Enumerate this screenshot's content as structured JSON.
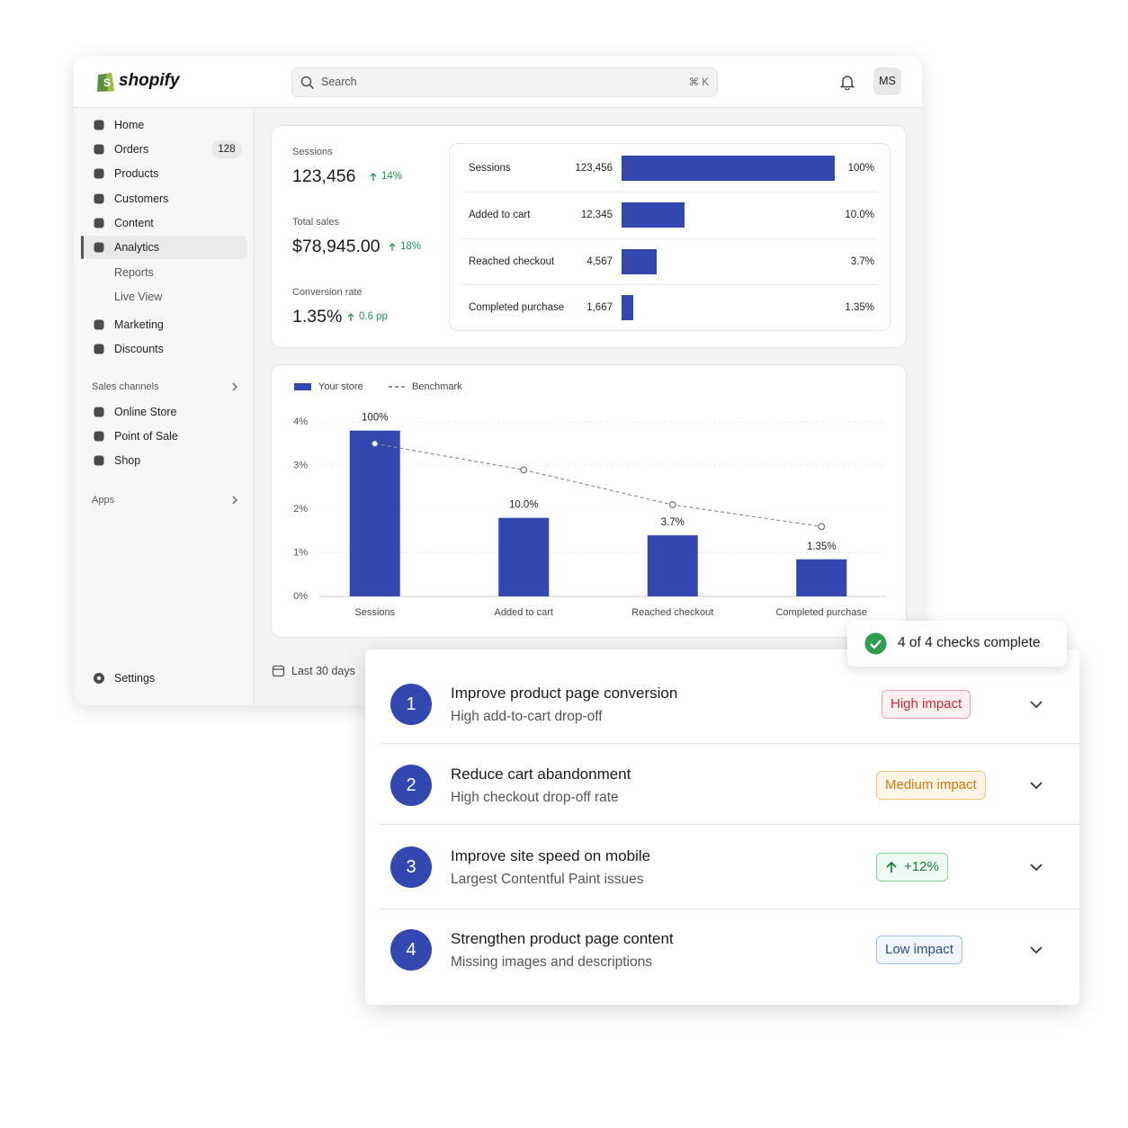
{
  "header": {
    "logo": "shopify",
    "search_placeholder": "Search",
    "shortcut": "⌘ K",
    "avatar": "MS"
  },
  "sidebar": {
    "nav": [
      {
        "label": "Home"
      },
      {
        "label": "Orders",
        "badge": "128"
      },
      {
        "label": "Products"
      },
      {
        "label": "Customers"
      },
      {
        "label": "Content"
      },
      {
        "label": "Analytics"
      },
      {
        "label": "Reports"
      },
      {
        "label": "Live View"
      },
      {
        "label": "Marketing"
      },
      {
        "label": "Discounts"
      }
    ],
    "sales_channels": {
      "title": "Sales channels",
      "items": [
        "Online Store",
        "Point of Sale",
        "Shop"
      ]
    },
    "apps": "Apps",
    "settings": "Settings"
  },
  "metrics": [
    {
      "label": "Sessions",
      "value": "123,456",
      "change": "14%"
    },
    {
      "label": "Total sales",
      "value": "$78,945.00",
      "change": "18%"
    },
    {
      "label": "Conversion rate",
      "value": "1.35%",
      "change": "0.6 pp"
    }
  ],
  "funnel": {
    "rows": [
      {
        "stage": "Sessions",
        "count": "123,456",
        "rate": "100%"
      },
      {
        "stage": "Added to cart",
        "count": "12,345",
        "rate": "10.0%"
      },
      {
        "stage": "Reached checkout",
        "count": "4,567",
        "rate": "3.7%"
      },
      {
        "stage": "Completed purchase",
        "count": "1,667",
        "rate": "1.35%"
      }
    ]
  },
  "chart_data": {
    "type": "bar",
    "categories": [
      "Sessions",
      "Added to cart",
      "Reached checkout",
      "Completed purchase"
    ],
    "series": [
      {
        "name": "Your store",
        "type": "bar",
        "color": "#3347b0",
        "values": [
          3.8,
          1.8,
          1.4,
          0.85
        ]
      },
      {
        "name": "Benchmark",
        "type": "line",
        "color": "#8a8f99",
        "dashed": true,
        "values": [
          3.5,
          2.9,
          2.1,
          1.6
        ]
      }
    ],
    "annotations": [
      "100%",
      "10.0%",
      "3.7%",
      "1.35%"
    ],
    "ylim": [
      0,
      4
    ],
    "yticks": [
      {
        "value": 0,
        "label": "0%"
      },
      {
        "value": 1,
        "label": "1%"
      },
      {
        "value": 2,
        "label": "2%"
      },
      {
        "value": 3,
        "label": "3%"
      },
      {
        "value": 4,
        "label": "4%"
      }
    ],
    "grid": true,
    "legend": "top-left"
  },
  "date_range": "Last 30 days",
  "checks": {
    "status": "4 of 4 checks complete",
    "items": [
      {
        "number": "1",
        "title": "Improve product page conversion",
        "detail": "High add-to-cart drop-off",
        "badge": "High impact"
      },
      {
        "number": "2",
        "title": "Reduce cart abandonment",
        "detail": "High checkout drop-off rate",
        "badge": "Medium impact"
      },
      {
        "number": "3",
        "title": "Improve site speed on mobile",
        "detail": "Largest Contentful Paint issues",
        "badge": "+12%"
      },
      {
        "number": "4",
        "title": "Strengthen product page content",
        "detail": "Missing images and descriptions",
        "badge": "Low impact"
      }
    ]
  }
}
